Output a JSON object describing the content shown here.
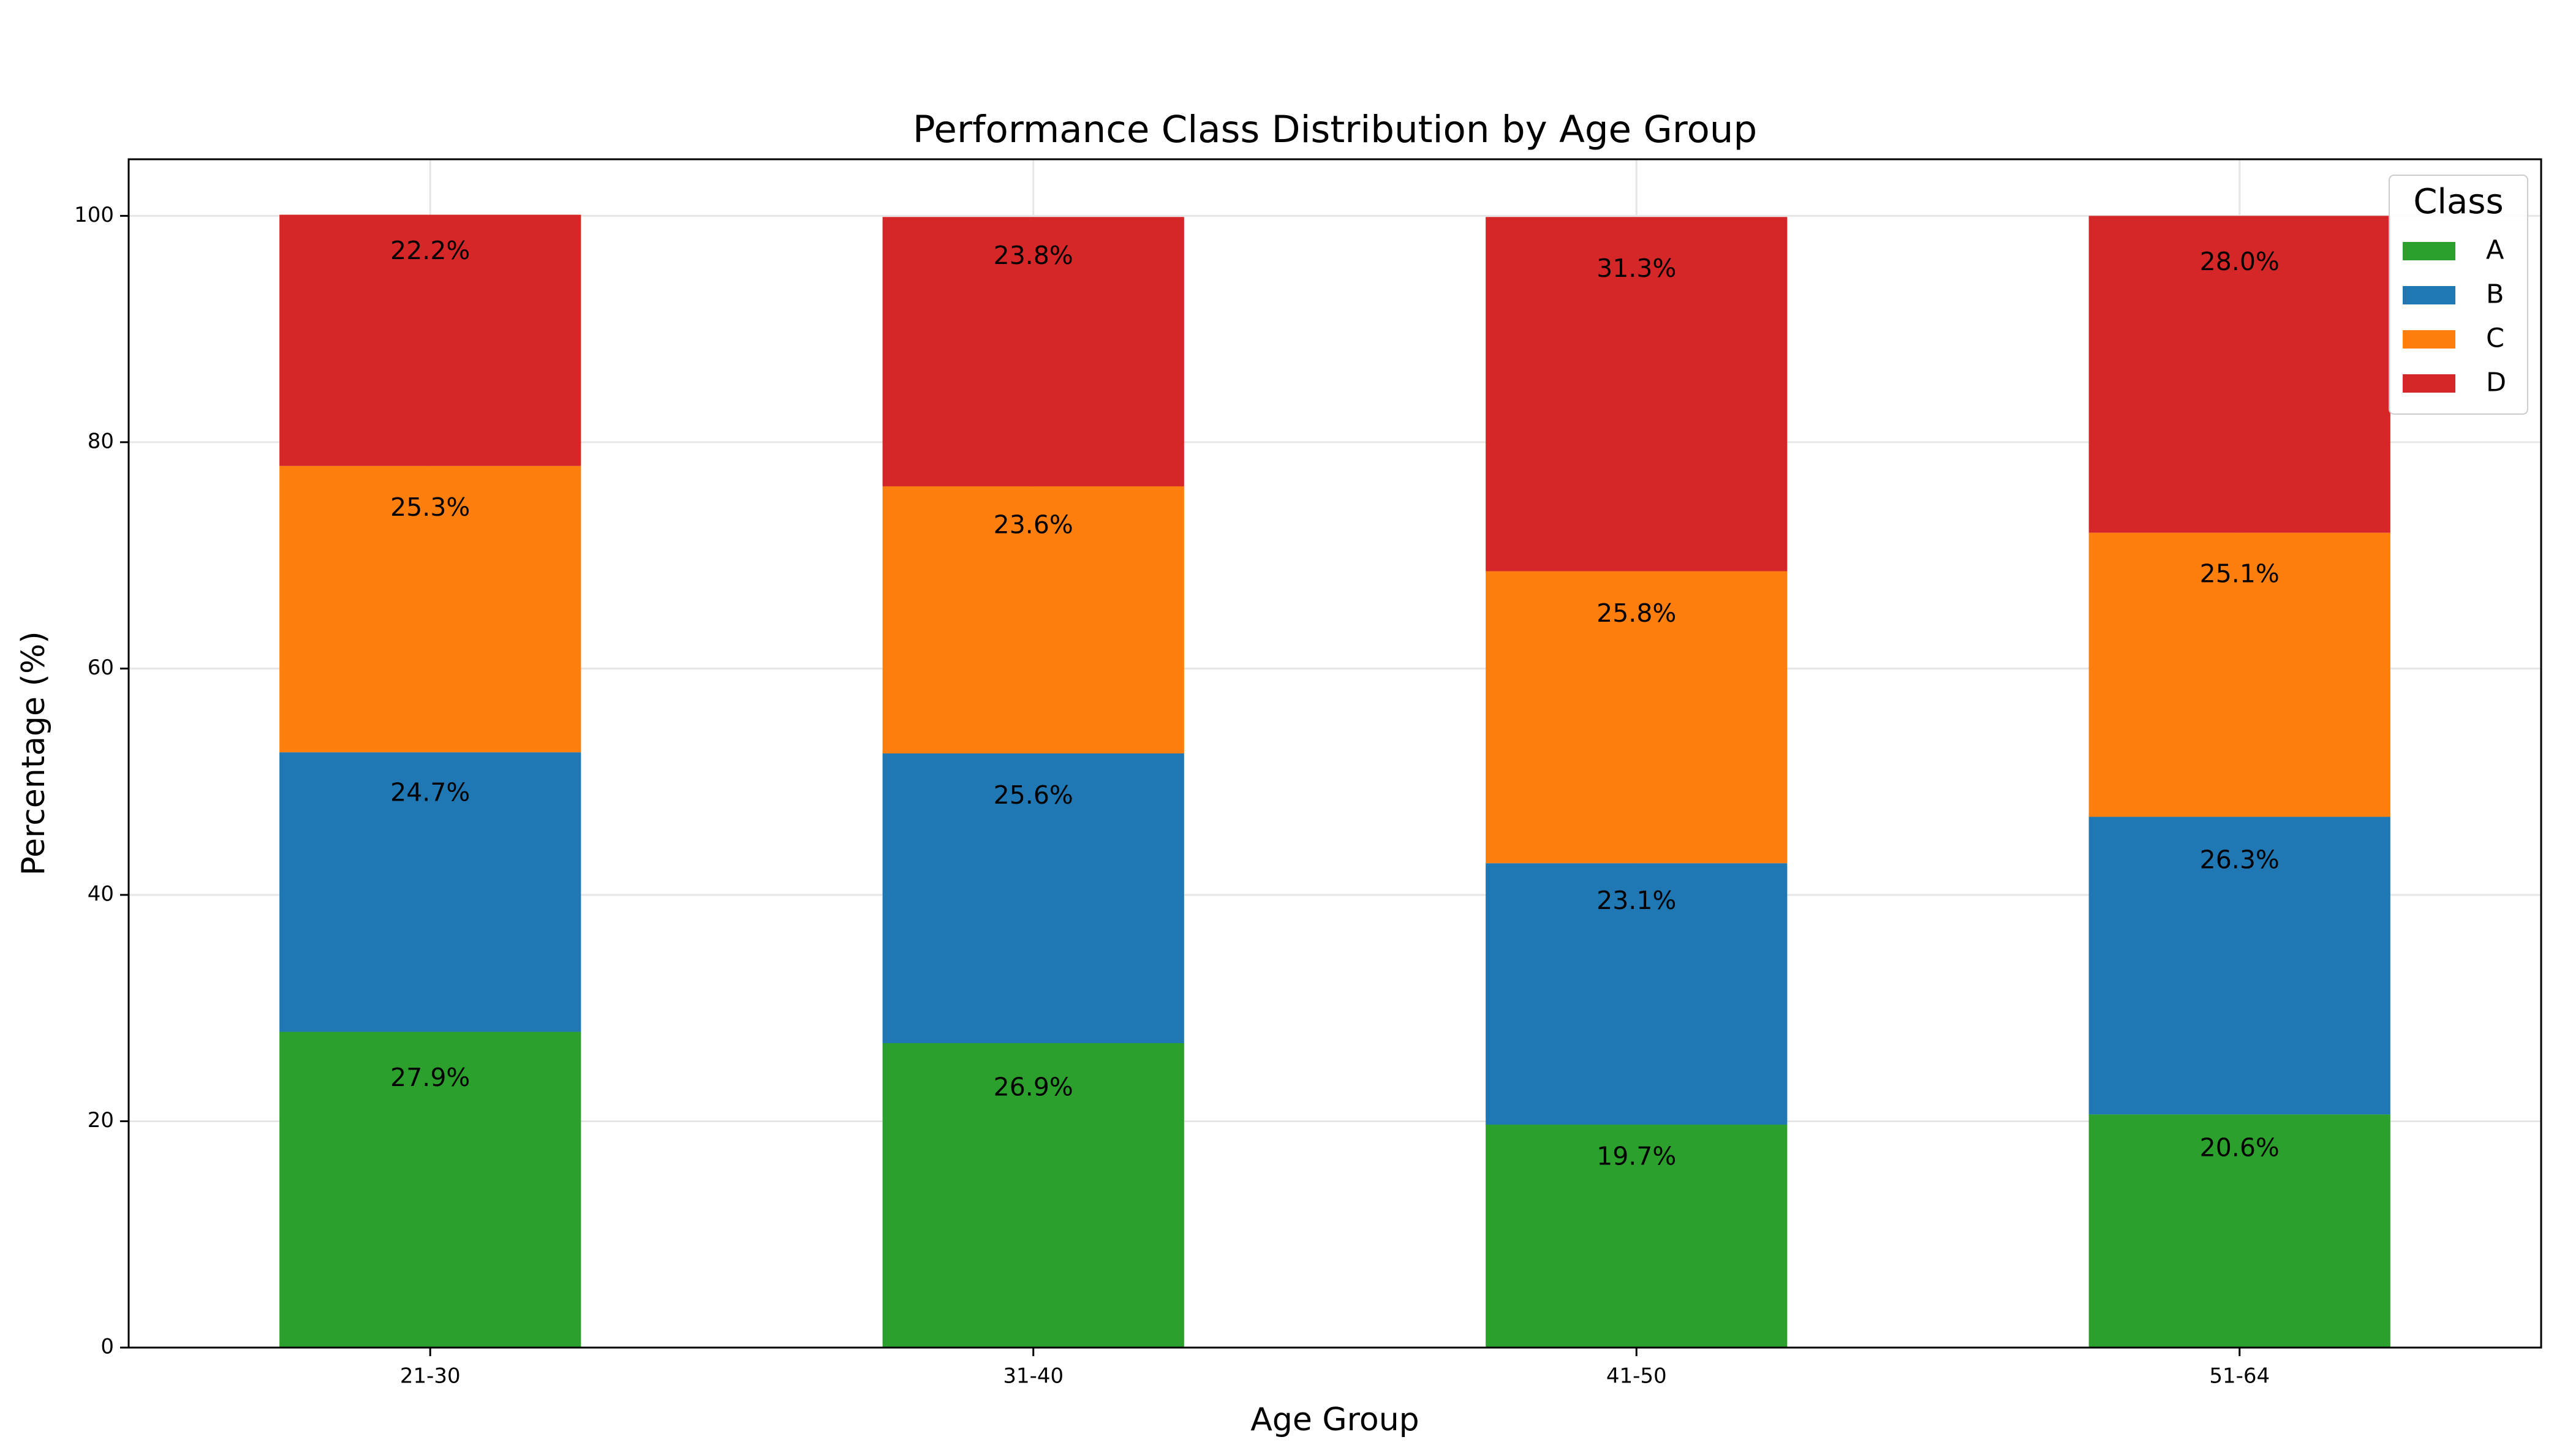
{
  "chart_data": {
    "type": "bar",
    "stacked": true,
    "title": "Performance Class Distribution by Age Group",
    "xlabel": "Age Group",
    "ylabel": "Percentage (%)",
    "categories": [
      "21-30",
      "31-40",
      "41-50",
      "51-64"
    ],
    "ylim": [
      0,
      105
    ],
    "yticks": [
      0,
      20,
      40,
      60,
      80,
      100
    ],
    "grid": true,
    "legend": {
      "title": "Class",
      "placement": "top-right"
    },
    "series": [
      {
        "name": "A",
        "color": "#2ca02c",
        "values": [
          27.9,
          26.9,
          19.7,
          20.6
        ]
      },
      {
        "name": "B",
        "color": "#1f77b4",
        "values": [
          24.7,
          25.6,
          23.1,
          26.3
        ]
      },
      {
        "name": "C",
        "color": "#ff7f0e",
        "values": [
          25.3,
          23.6,
          25.8,
          25.1
        ]
      },
      {
        "name": "D",
        "color": "#d62728",
        "values": [
          22.2,
          23.8,
          31.3,
          28.0
        ]
      }
    ],
    "segment_labels": [
      [
        "27.9%",
        "24.7%",
        "25.3%",
        "22.2%"
      ],
      [
        "26.9%",
        "25.6%",
        "23.6%",
        "23.8%"
      ],
      [
        "19.7%",
        "23.1%",
        "25.8%",
        "31.3%"
      ],
      [
        "20.6%",
        "26.3%",
        "25.1%",
        "28.0%"
      ]
    ]
  }
}
